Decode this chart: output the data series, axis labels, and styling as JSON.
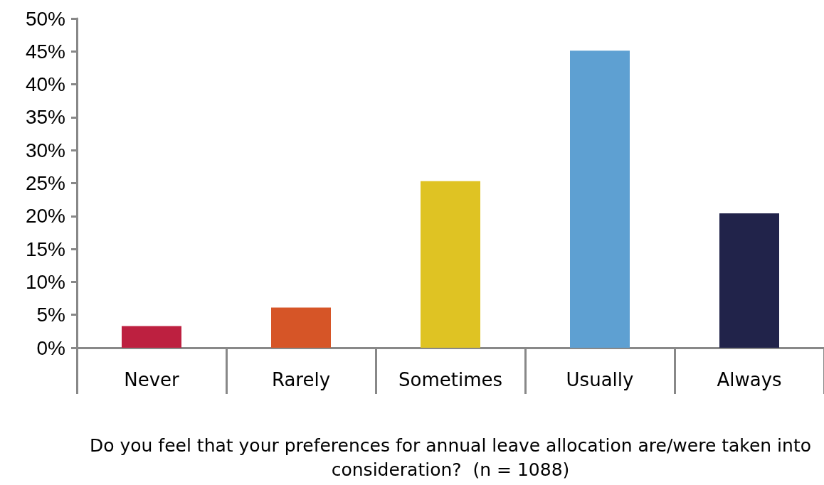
{
  "chart_data": {
    "type": "bar",
    "xlabel": "Do you feel that your preferences for annual leave allocation are/were taken into consideration?  (n = 1088)",
    "categories": [
      "Never",
      "Rarely",
      "Sometimes",
      "Usually",
      "Always"
    ],
    "values": [
      3.3,
      6.1,
      25.3,
      45.1,
      20.4
    ],
    "colors": [
      "#bd2040",
      "#d65527",
      "#dfc323",
      "#5ea0d2",
      "#21234a"
    ],
    "ylim": [
      0,
      50
    ],
    "yticks": [
      {
        "value": 0,
        "label": "0%"
      },
      {
        "value": 5,
        "label": "5%"
      },
      {
        "value": 10,
        "label": "10%"
      },
      {
        "value": 15,
        "label": "15%"
      },
      {
        "value": 20,
        "label": "20%"
      },
      {
        "value": 25,
        "label": "25%"
      },
      {
        "value": 30,
        "label": "30%"
      },
      {
        "value": 35,
        "label": "35%"
      },
      {
        "value": 40,
        "label": "40%"
      },
      {
        "value": 45,
        "label": "45%"
      },
      {
        "value": 50,
        "label": "50%"
      }
    ],
    "grid": false
  }
}
